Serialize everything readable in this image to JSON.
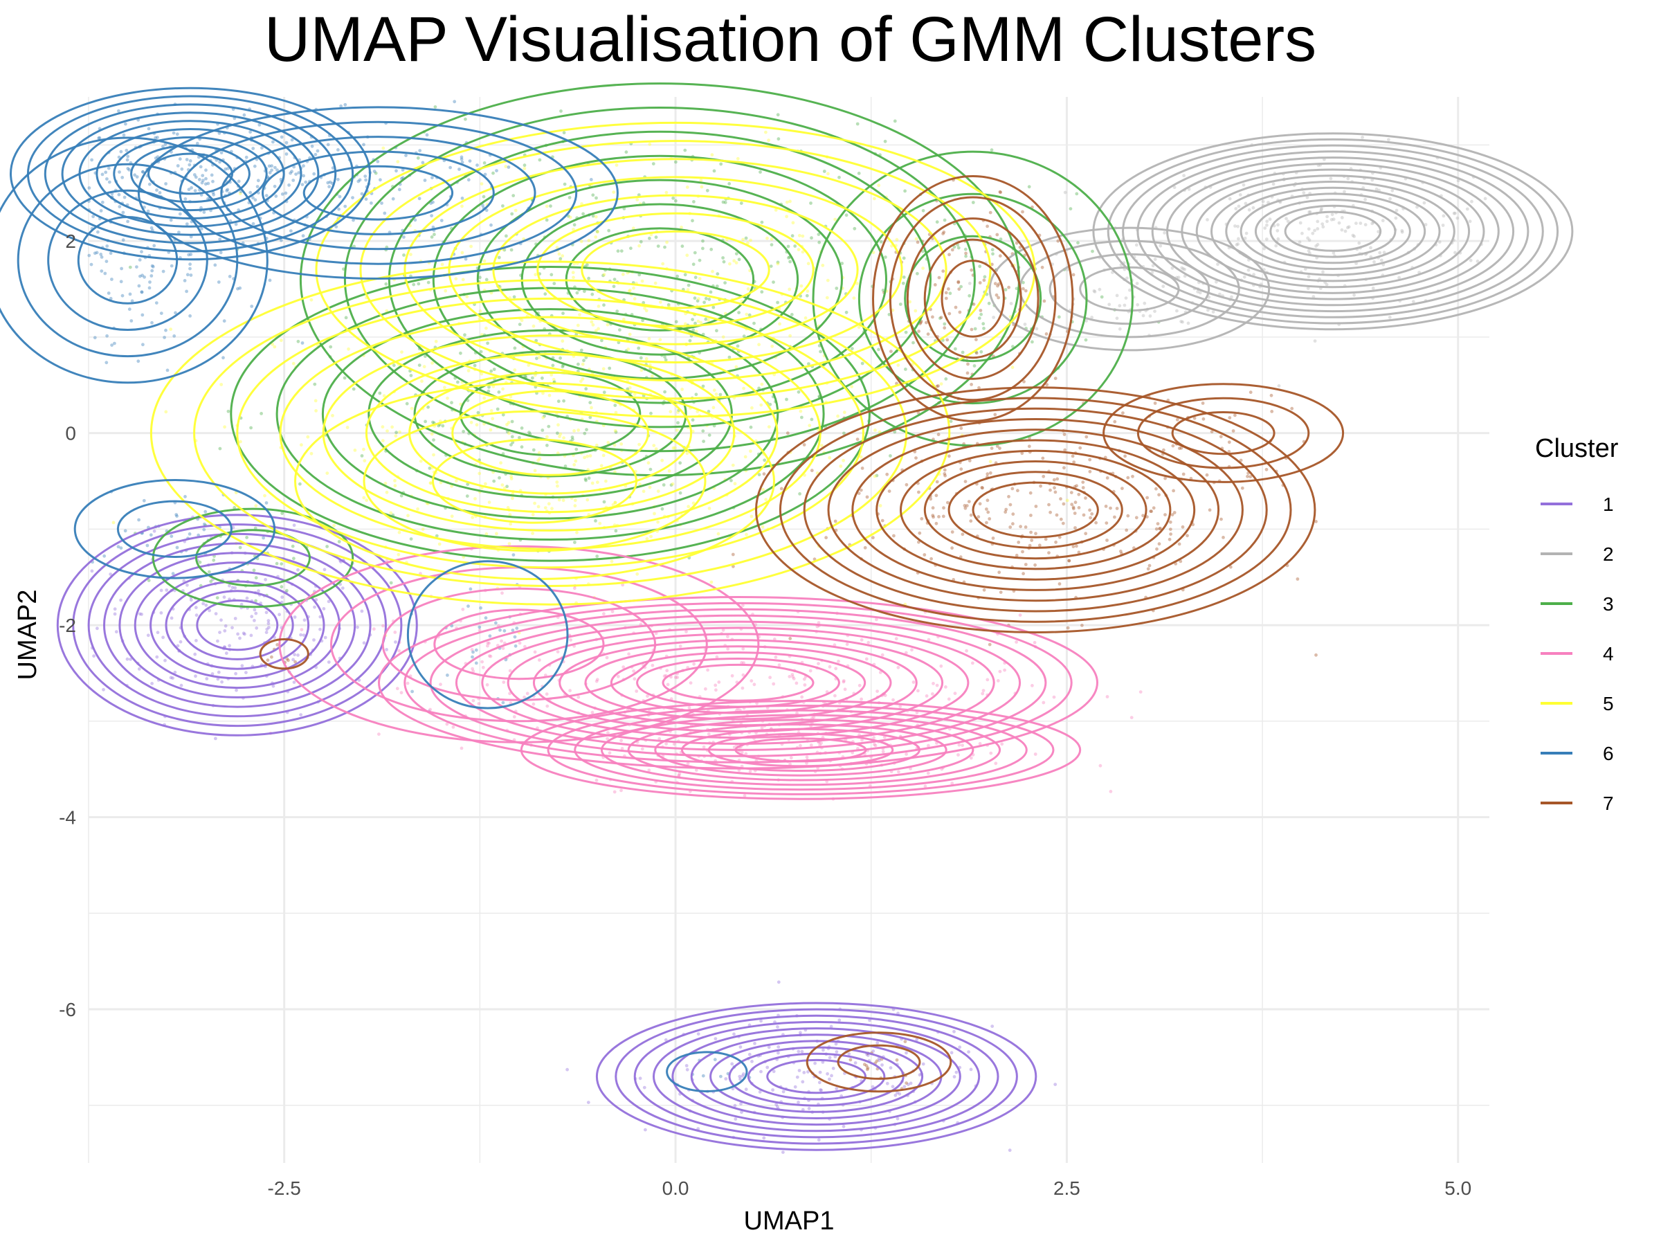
{
  "chart_data": {
    "type": "scatter",
    "title": "UMAP Visualisation of GMM Clusters",
    "xlabel": "UMAP1",
    "ylabel": "UMAP2",
    "xlim": [
      -3.75,
      5.2
    ],
    "ylim": [
      -7.6,
      3.5
    ],
    "x_ticks": [
      -2.5,
      0.0,
      2.5,
      5.0
    ],
    "x_tick_labels": [
      "-2.5",
      "0.0",
      "2.5",
      "5.0"
    ],
    "y_ticks": [
      -6,
      -4,
      -2,
      0,
      2
    ],
    "y_tick_labels": [
      "-6",
      "-4",
      "-2",
      "0",
      "2"
    ],
    "grid": true,
    "legend": {
      "title": "Cluster",
      "placement": "right",
      "entries": [
        {
          "label": "1",
          "color": "#9370DB"
        },
        {
          "label": "2",
          "color": "#B3B3B3"
        },
        {
          "label": "3",
          "color": "#4DAF4A"
        },
        {
          "label": "4",
          "color": "#F781BF"
        },
        {
          "label": "5",
          "color": "#FFFF33"
        },
        {
          "label": "6",
          "color": "#377EB8"
        },
        {
          "label": "7",
          "color": "#A65628"
        }
      ]
    },
    "series": [
      {
        "name": "1",
        "color": "#9370DB",
        "density_peaks": [
          [
            -2.8,
            -2.0
          ],
          [
            0.9,
            -6.7
          ]
        ]
      },
      {
        "name": "2",
        "color": "#B3B3B3",
        "density_peaks": [
          [
            4.2,
            2.1
          ],
          [
            2.9,
            1.5
          ]
        ]
      },
      {
        "name": "3",
        "color": "#4DAF4A",
        "density_peaks": [
          [
            -0.1,
            1.6
          ],
          [
            -0.8,
            0.2
          ],
          [
            1.9,
            1.4
          ],
          [
            -2.7,
            -1.3
          ]
        ]
      },
      {
        "name": "4",
        "color": "#F781BF",
        "density_peaks": [
          [
            0.4,
            -2.6
          ],
          [
            0.8,
            -3.3
          ],
          [
            -1.0,
            -2.2
          ]
        ]
      },
      {
        "name": "5",
        "color": "#FFFF33",
        "density_peaks": [
          [
            -0.8,
            0.0
          ],
          [
            0.0,
            1.7
          ],
          [
            -0.9,
            -0.5
          ]
        ]
      },
      {
        "name": "6",
        "color": "#377EB8",
        "density_peaks": [
          [
            -3.1,
            2.7
          ],
          [
            -1.9,
            2.5
          ],
          [
            -3.5,
            1.8
          ],
          [
            -3.2,
            -1.0
          ],
          [
            -1.2,
            -2.1
          ],
          [
            0.2,
            -6.65
          ]
        ]
      },
      {
        "name": "7",
        "color": "#A65628",
        "density_peaks": [
          [
            2.3,
            -0.8
          ],
          [
            1.9,
            1.4
          ],
          [
            3.5,
            0.0
          ],
          [
            1.3,
            -6.55
          ],
          [
            -2.5,
            -2.3
          ]
        ]
      }
    ]
  }
}
